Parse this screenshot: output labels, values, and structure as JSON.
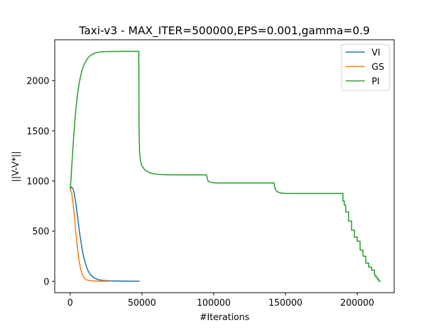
{
  "chart_data": {
    "type": "line",
    "title": "Taxi-v3 - MAX_ITER=500000,EPS=0.001,gamma=0.9",
    "xlabel": "#Iterations",
    "ylabel": "||V-V*||",
    "xlim": [
      -10750,
      225750
    ],
    "ylim": [
      -114,
      2408
    ],
    "xticks": [
      0,
      50000,
      100000,
      150000,
      200000
    ],
    "yticks": [
      0,
      500,
      1000,
      1500,
      2000
    ],
    "grid": false,
    "legend_position": "top-right",
    "series": [
      {
        "name": "VI",
        "color": "#1f77b4",
        "x": [
          0,
          1000,
          2000,
          3000,
          4000,
          5000,
          6000,
          7000,
          8000,
          9000,
          10000,
          11000,
          12000,
          13000,
          14000,
          16000,
          18000,
          20000,
          22000,
          25000,
          28000,
          32000,
          36000,
          40000,
          44000,
          48000
        ],
        "y": [
          920,
          940,
          920,
          860,
          770,
          660,
          545,
          440,
          350,
          270,
          210,
          160,
          120,
          90,
          68,
          40,
          24,
          15,
          10,
          6,
          4,
          2,
          1.5,
          1,
          0.5,
          0
        ]
      },
      {
        "name": "GS",
        "color": "#ff7f0e",
        "x": [
          0,
          1000,
          2000,
          3000,
          4000,
          5000,
          6000,
          7000,
          8000,
          9000,
          10000,
          11000,
          12000,
          14000,
          16000,
          18000,
          21000,
          25000,
          27000
        ],
        "y": [
          920,
          880,
          780,
          640,
          480,
          340,
          225,
          140,
          85,
          50,
          30,
          18,
          11,
          5,
          2.5,
          1.5,
          0.8,
          0.2,
          0
        ]
      },
      {
        "name": "PI",
        "color": "#2ca02c",
        "x": [
          0,
          500,
          1000,
          2000,
          3000,
          4000,
          5000,
          6000,
          7000,
          8000,
          9000,
          10000,
          12000,
          14000,
          16000,
          18000,
          20000,
          23000,
          26000,
          30000,
          35000,
          40000,
          47800,
          48000,
          48300,
          49000,
          50000,
          52000,
          55000,
          58000,
          62000,
          68000,
          75000,
          85000,
          95000,
          95500,
          96000,
          97000,
          99000,
          102000,
          106000,
          115000,
          130000,
          142000,
          142500,
          143000,
          144000,
          146000,
          150000,
          160000,
          175000,
          190000,
          190000,
          191000,
          191000,
          192000,
          192000,
          194000,
          194000,
          196000,
          196000,
          198000,
          198000,
          200000,
          200000,
          202000,
          202000,
          204000,
          204000,
          206000,
          206000,
          208000,
          208000,
          210000,
          210000,
          212000,
          212000,
          213000,
          213000,
          214000,
          214000,
          215000,
          215000,
          216000
        ],
        "y": [
          930,
          1000,
          1120,
          1350,
          1550,
          1720,
          1850,
          1950,
          2030,
          2090,
          2135,
          2170,
          2220,
          2250,
          2268,
          2278,
          2284,
          2288,
          2290,
          2291,
          2292,
          2292,
          2292,
          1500,
          1300,
          1200,
          1150,
          1110,
          1085,
          1072,
          1065,
          1062,
          1060,
          1060,
          1060,
          1030,
          1000,
          990,
          983,
          980,
          980,
          980,
          980,
          980,
          940,
          915,
          895,
          882,
          876,
          875,
          875,
          875,
          800,
          800,
          760,
          760,
          690,
          690,
          600,
          600,
          510,
          510,
          440,
          440,
          400,
          400,
          310,
          310,
          250,
          250,
          180,
          180,
          140,
          140,
          110,
          110,
          60,
          60,
          40,
          40,
          20,
          20,
          0,
          0
        ]
      }
    ]
  }
}
